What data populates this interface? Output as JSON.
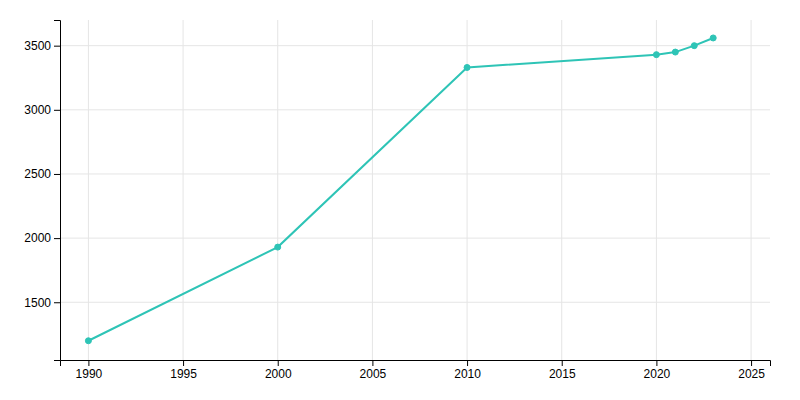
{
  "chart_data": {
    "type": "line",
    "x": [
      1990,
      2000,
      2010,
      2020,
      2021,
      2022,
      2023
    ],
    "values": [
      1200,
      1930,
      3330,
      3430,
      3450,
      3500,
      3560
    ],
    "color": "#2ec4b6",
    "marker": "circle",
    "xlim": [
      1988.5,
      2026
    ],
    "ylim": [
      1050,
      3700
    ],
    "xticks": [
      1990,
      1995,
      2000,
      2005,
      2010,
      2015,
      2020,
      2025
    ],
    "yticks": [
      1500,
      2000,
      2500,
      3000,
      3500
    ],
    "grid": true
  }
}
